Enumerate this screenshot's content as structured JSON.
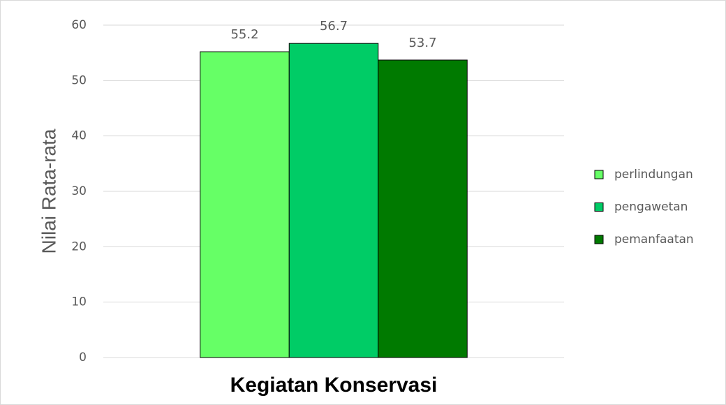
{
  "chart_data": {
    "type": "bar",
    "x_label": "Kegiatan Konservasi",
    "y_label": "Nilai Rata-rata",
    "categories": [
      null
    ],
    "series": [
      {
        "name": "perlindungan",
        "color": "#66ff66",
        "values": [
          55.2
        ]
      },
      {
        "name": "pengawetan",
        "color": "#00cc66",
        "values": [
          56.7
        ]
      },
      {
        "name": "pemanfaatan",
        "color": "#007a00",
        "values": [
          53.7
        ]
      }
    ],
    "ylim": [
      0,
      60
    ],
    "yticks": [
      0,
      10,
      20,
      30,
      40,
      50,
      60
    ],
    "grid": true,
    "legend": "right"
  }
}
